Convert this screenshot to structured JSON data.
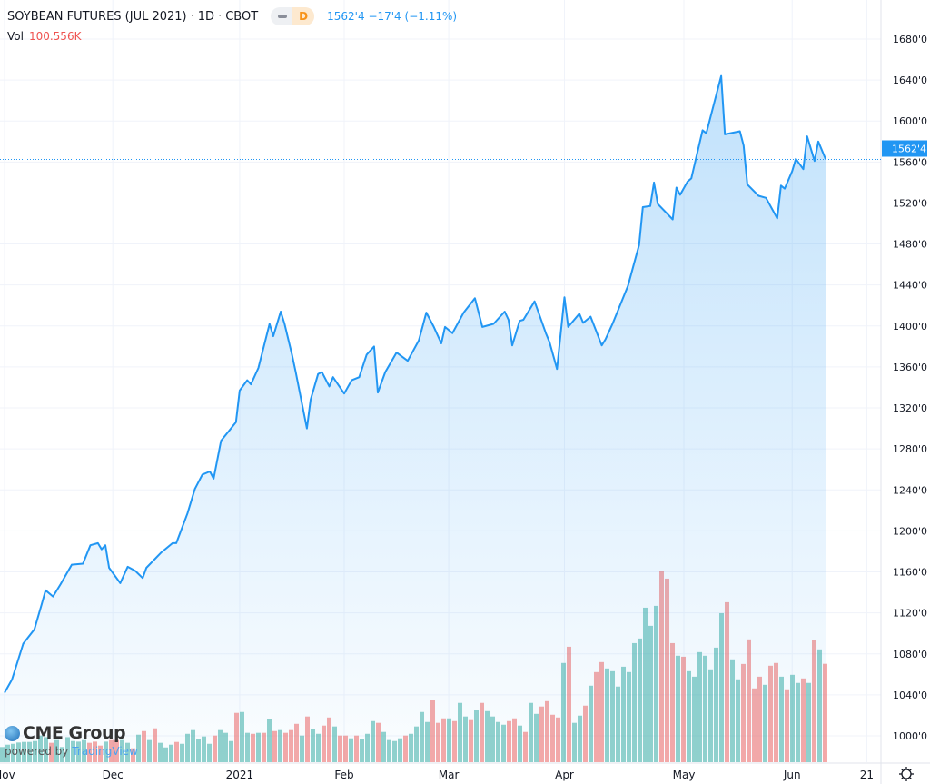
{
  "header": {
    "title": "SOYBEAN FUTURES (JUL 2021)",
    "interval": "1D",
    "exchange": "CBOT",
    "separator": "·",
    "market_status_badge": "D",
    "last_price": "1562'4",
    "change": "−17'4",
    "change_pct": "(−1.11%)",
    "volume_label": "Vol",
    "volume_value": "100.556K"
  },
  "branding": {
    "logo": "CME Group",
    "powered_by": "powered by",
    "provider": "TradingView"
  },
  "settings_icon": "gear-icon",
  "colors": {
    "line": "#2196f3",
    "up_volume": "#26a69a",
    "down_volume": "#ef5350",
    "price_label_bg": "#2196f3"
  },
  "chart_data": {
    "type": "area",
    "price_unit": "cents per bushel (quoted as 'xxx'y eighths)",
    "y_ticks": [
      "1000'0",
      "1040'0",
      "1080'0",
      "1120'0",
      "1160'0",
      "1200'0",
      "1240'0",
      "1280'0",
      "1320'0",
      "1360'0",
      "1400'0",
      "1440'0",
      "1480'0",
      "1520'0",
      "1560'0",
      "1600'0",
      "1640'0",
      "1680'0"
    ],
    "ylim": [
      975,
      1700
    ],
    "x_ticks": [
      {
        "label": "Nov",
        "date": "2020-11-02"
      },
      {
        "label": "Dec",
        "date": "2020-12-01"
      },
      {
        "label": "2021",
        "date": "2021-01-04"
      },
      {
        "label": "Feb",
        "date": "2021-02-01"
      },
      {
        "label": "Mar",
        "date": "2021-03-01"
      },
      {
        "label": "Apr",
        "date": "2021-04-01"
      },
      {
        "label": "May",
        "date": "2021-05-03"
      },
      {
        "label": "Jun",
        "date": "2021-06-01"
      },
      {
        "label": "21",
        "date": "2021-06-21"
      }
    ],
    "grid": true,
    "current_price_label": "1562'4",
    "current_price": 1562.5,
    "close": [
      [
        "2020-11-02",
        1042
      ],
      [
        "2020-11-04",
        1055
      ],
      [
        "2020-11-07",
        1090
      ],
      [
        "2020-11-10",
        1104
      ],
      [
        "2020-11-12",
        1129
      ],
      [
        "2020-11-13",
        1142
      ],
      [
        "2020-11-15",
        1136
      ],
      [
        "2020-11-17",
        1148
      ],
      [
        "2020-11-20",
        1167
      ],
      [
        "2020-11-23",
        1168
      ],
      [
        "2020-11-25",
        1186
      ],
      [
        "2020-11-27",
        1188
      ],
      [
        "2020-11-28",
        1182
      ],
      [
        "2020-11-29",
        1186
      ],
      [
        "2020-11-30",
        1164
      ],
      [
        "2020-12-03",
        1149
      ],
      [
        "2020-12-05",
        1165
      ],
      [
        "2020-12-07",
        1161
      ],
      [
        "2020-12-09",
        1154
      ],
      [
        "2020-12-10",
        1164
      ],
      [
        "2020-12-14",
        1179
      ],
      [
        "2020-12-17",
        1188
      ],
      [
        "2020-12-18",
        1188
      ],
      [
        "2020-12-21",
        1217
      ],
      [
        "2020-12-23",
        1241
      ],
      [
        "2020-12-25",
        1255
      ],
      [
        "2020-12-27",
        1258
      ],
      [
        "2020-12-28",
        1251
      ],
      [
        "2020-12-30",
        1288
      ],
      [
        "2021-01-01",
        1297
      ],
      [
        "2021-01-03",
        1306
      ],
      [
        "2021-01-04",
        1337
      ],
      [
        "2021-01-06",
        1347
      ],
      [
        "2021-01-07",
        1343
      ],
      [
        "2021-01-09",
        1359
      ],
      [
        "2021-01-12",
        1402
      ],
      [
        "2021-01-13",
        1390
      ],
      [
        "2021-01-15",
        1414
      ],
      [
        "2021-01-16",
        1402
      ],
      [
        "2021-01-18",
        1372
      ],
      [
        "2021-01-19",
        1355
      ],
      [
        "2021-01-22",
        1300
      ],
      [
        "2021-01-23",
        1328
      ],
      [
        "2021-01-25",
        1353
      ],
      [
        "2021-01-26",
        1355
      ],
      [
        "2021-01-28",
        1341
      ],
      [
        "2021-01-29",
        1350
      ],
      [
        "2021-02-01",
        1334
      ],
      [
        "2021-02-03",
        1347
      ],
      [
        "2021-02-05",
        1350
      ],
      [
        "2021-02-07",
        1372
      ],
      [
        "2021-02-09",
        1380
      ],
      [
        "2021-02-10",
        1335
      ],
      [
        "2021-02-12",
        1355
      ],
      [
        "2021-02-15",
        1374
      ],
      [
        "2021-02-18",
        1366
      ],
      [
        "2021-02-21",
        1386
      ],
      [
        "2021-02-23",
        1413
      ],
      [
        "2021-02-25",
        1399
      ],
      [
        "2021-02-27",
        1383
      ],
      [
        "2021-02-28",
        1399
      ],
      [
        "2021-03-02",
        1393
      ],
      [
        "2021-03-05",
        1413
      ],
      [
        "2021-03-08",
        1427
      ],
      [
        "2021-03-10",
        1399
      ],
      [
        "2021-03-13",
        1402
      ],
      [
        "2021-03-16",
        1414
      ],
      [
        "2021-03-17",
        1406
      ],
      [
        "2021-03-18",
        1381
      ],
      [
        "2021-03-20",
        1405
      ],
      [
        "2021-03-21",
        1406
      ],
      [
        "2021-03-24",
        1424
      ],
      [
        "2021-03-27",
        1393
      ],
      [
        "2021-03-28",
        1384
      ],
      [
        "2021-03-30",
        1358
      ],
      [
        "2021-04-01",
        1428
      ],
      [
        "2021-04-02",
        1399
      ],
      [
        "2021-04-05",
        1412
      ],
      [
        "2021-04-06",
        1403
      ],
      [
        "2021-04-08",
        1409
      ],
      [
        "2021-04-11",
        1381
      ],
      [
        "2021-04-12",
        1387
      ],
      [
        "2021-04-14",
        1403
      ],
      [
        "2021-04-18",
        1439
      ],
      [
        "2021-04-21",
        1479
      ],
      [
        "2021-04-22",
        1516
      ],
      [
        "2021-04-24",
        1517
      ],
      [
        "2021-04-25",
        1540
      ],
      [
        "2021-04-26",
        1519
      ],
      [
        "2021-04-30",
        1504
      ],
      [
        "2021-05-01",
        1535
      ],
      [
        "2021-05-02",
        1528
      ],
      [
        "2021-05-04",
        1541
      ],
      [
        "2021-05-05",
        1544
      ],
      [
        "2021-05-08",
        1591
      ],
      [
        "2021-05-09",
        1588
      ],
      [
        "2021-05-13",
        1644
      ],
      [
        "2021-05-14",
        1587
      ],
      [
        "2021-05-18",
        1590
      ],
      [
        "2021-05-19",
        1576
      ],
      [
        "2021-05-20",
        1538
      ],
      [
        "2021-05-23",
        1527
      ],
      [
        "2021-05-25",
        1525
      ],
      [
        "2021-05-28",
        1505
      ],
      [
        "2021-05-29",
        1537
      ],
      [
        "2021-05-30",
        1534
      ],
      [
        "2021-06-01",
        1551
      ],
      [
        "2021-06-02",
        1563
      ],
      [
        "2021-06-04",
        1553
      ],
      [
        "2021-06-05",
        1585
      ],
      [
        "2021-06-07",
        1561
      ],
      [
        "2021-06-08",
        1580
      ],
      [
        "2021-06-10",
        1562.5
      ]
    ],
    "volume_unit": "K",
    "volume": [
      [
        15.5,
        "up"
      ],
      [
        17.9,
        "up"
      ],
      [
        18.8,
        "up"
      ],
      [
        20.1,
        "up"
      ],
      [
        20.7,
        "up"
      ],
      [
        20.7,
        "up"
      ],
      [
        21.6,
        "up"
      ],
      [
        27.2,
        "up"
      ],
      [
        25.6,
        "up"
      ],
      [
        19.8,
        "down"
      ],
      [
        22.6,
        "up"
      ],
      [
        15.5,
        "up"
      ],
      [
        25.6,
        "up"
      ],
      [
        21.6,
        "up"
      ],
      [
        21.0,
        "up"
      ],
      [
        22.6,
        "up"
      ],
      [
        19.8,
        "down"
      ],
      [
        21.0,
        "down"
      ],
      [
        17.0,
        "down"
      ],
      [
        21.0,
        "up"
      ],
      [
        22.6,
        "down"
      ],
      [
        22.6,
        "down"
      ],
      [
        22.6,
        "up"
      ],
      [
        19.8,
        "up"
      ],
      [
        14.2,
        "down"
      ],
      [
        28.1,
        "up"
      ],
      [
        31.8,
        "down"
      ],
      [
        22.6,
        "up"
      ],
      [
        34.6,
        "down"
      ],
      [
        19.8,
        "up"
      ],
      [
        15.1,
        "up"
      ],
      [
        17.9,
        "up"
      ],
      [
        20.7,
        "down"
      ],
      [
        18.8,
        "up"
      ],
      [
        29.0,
        "up"
      ],
      [
        32.8,
        "up"
      ],
      [
        23.5,
        "up"
      ],
      [
        26.3,
        "up"
      ],
      [
        18.8,
        "up"
      ],
      [
        27.2,
        "down"
      ],
      [
        32.8,
        "up"
      ],
      [
        30.0,
        "up"
      ],
      [
        21.6,
        "up"
      ],
      [
        50.4,
        "down"
      ],
      [
        51.3,
        "up"
      ],
      [
        30.0,
        "up"
      ],
      [
        29.0,
        "down"
      ],
      [
        30.0,
        "up"
      ],
      [
        30.0,
        "down"
      ],
      [
        43.9,
        "up"
      ],
      [
        31.8,
        "down"
      ],
      [
        32.8,
        "up"
      ],
      [
        30.0,
        "down"
      ],
      [
        32.8,
        "down"
      ],
      [
        39.2,
        "down"
      ],
      [
        27.2,
        "up"
      ],
      [
        46.7,
        "down"
      ],
      [
        33.7,
        "up"
      ],
      [
        29.0,
        "up"
      ],
      [
        37.4,
        "down"
      ],
      [
        45.7,
        "down"
      ],
      [
        36.5,
        "up"
      ],
      [
        27.2,
        "down"
      ],
      [
        27.2,
        "down"
      ],
      [
        24.4,
        "up"
      ],
      [
        27.2,
        "down"
      ],
      [
        23.5,
        "up"
      ],
      [
        29.0,
        "up"
      ],
      [
        42.0,
        "up"
      ],
      [
        40.2,
        "down"
      ],
      [
        30.9,
        "up"
      ],
      [
        22.6,
        "up"
      ],
      [
        21.6,
        "up"
      ],
      [
        24.4,
        "up"
      ],
      [
        27.2,
        "down"
      ],
      [
        29.0,
        "up"
      ],
      [
        36.5,
        "up"
      ],
      [
        51.3,
        "up"
      ],
      [
        41.1,
        "up"
      ],
      [
        63.3,
        "down"
      ],
      [
        40.2,
        "down"
      ],
      [
        44.8,
        "down"
      ],
      [
        44.8,
        "up"
      ],
      [
        42.0,
        "down"
      ],
      [
        60.6,
        "up"
      ],
      [
        46.7,
        "up"
      ],
      [
        43.0,
        "down"
      ],
      [
        53.1,
        "up"
      ],
      [
        60.6,
        "down"
      ],
      [
        52.2,
        "up"
      ],
      [
        46.7,
        "up"
      ],
      [
        41.1,
        "up"
      ],
      [
        38.3,
        "up"
      ],
      [
        42.0,
        "down"
      ],
      [
        44.8,
        "down"
      ],
      [
        37.4,
        "up"
      ],
      [
        30.9,
        "down"
      ],
      [
        60.6,
        "up"
      ],
      [
        49.4,
        "up"
      ],
      [
        56.9,
        "down"
      ],
      [
        62.4,
        "down"
      ],
      [
        48.5,
        "down"
      ],
      [
        45.7,
        "down"
      ],
      [
        101.4,
        "up"
      ],
      [
        118.0,
        "down"
      ],
      [
        40.2,
        "up"
      ],
      [
        47.6,
        "up"
      ],
      [
        57.8,
        "down"
      ],
      [
        78.2,
        "up"
      ],
      [
        92.1,
        "down"
      ],
      [
        102.3,
        "down"
      ],
      [
        95.8,
        "up"
      ],
      [
        93.0,
        "up"
      ],
      [
        77.3,
        "up"
      ],
      [
        97.6,
        "up"
      ],
      [
        92.1,
        "up"
      ],
      [
        121.7,
        "up"
      ],
      [
        126.4,
        "up"
      ],
      [
        157.9,
        "up"
      ],
      [
        139.4,
        "up"
      ],
      [
        159.8,
        "up"
      ],
      [
        195.0,
        "down"
      ],
      [
        187.6,
        "down"
      ],
      [
        121.7,
        "down"
      ],
      [
        108.8,
        "up"
      ],
      [
        107.8,
        "down"
      ],
      [
        93.0,
        "up"
      ],
      [
        87.4,
        "up"
      ],
      [
        112.5,
        "up"
      ],
      [
        108.8,
        "up"
      ],
      [
        94.9,
        "up"
      ],
      [
        117.1,
        "up"
      ],
      [
        152.3,
        "up"
      ],
      [
        163.5,
        "down"
      ],
      [
        105.1,
        "up"
      ],
      [
        84.7,
        "up"
      ],
      [
        100.4,
        "down"
      ],
      [
        125.5,
        "down"
      ],
      [
        75.4,
        "down"
      ],
      [
        87.4,
        "down"
      ],
      [
        79.1,
        "up"
      ],
      [
        98.6,
        "down"
      ],
      [
        101.4,
        "down"
      ],
      [
        87.4,
        "up"
      ],
      [
        74.5,
        "down"
      ],
      [
        89.3,
        "up"
      ],
      [
        81.0,
        "up"
      ],
      [
        85.6,
        "down"
      ],
      [
        81.0,
        "up"
      ],
      [
        124.5,
        "down"
      ],
      [
        115.3,
        "up"
      ],
      [
        100.556,
        "down"
      ]
    ]
  }
}
